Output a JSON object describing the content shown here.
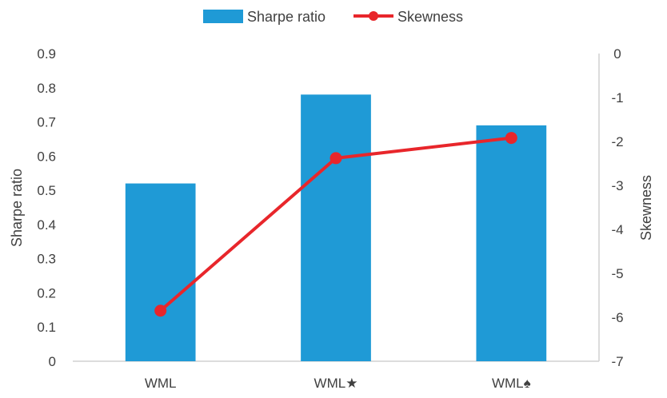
{
  "chart_data": {
    "type": "bar",
    "categories": [
      "WML",
      "WML★",
      "WML♠"
    ],
    "series": [
      {
        "name": "Sharpe ratio",
        "type": "bar",
        "axis": "left",
        "values": [
          0.52,
          0.78,
          0.69
        ],
        "color": "#1f9ad6"
      },
      {
        "name": "Skewness",
        "type": "line",
        "axis": "right",
        "values": [
          -5.85,
          -2.38,
          -1.92
        ],
        "color": "#e8262b"
      }
    ],
    "ylabel": "Sharpe ratio",
    "y2label": "Skewness",
    "ylim": [
      0,
      0.9
    ],
    "y2lim": [
      -7,
      0
    ],
    "yticks": [
      "0",
      "0.1",
      "0.2",
      "0.3",
      "0.4",
      "0.5",
      "0.6",
      "0.7",
      "0.8",
      "0.9"
    ],
    "y2ticks": [
      "0",
      "-1",
      "-2",
      "-3",
      "-4",
      "-5",
      "-6",
      "-7"
    ],
    "legend": "top-center",
    "grid": false
  }
}
